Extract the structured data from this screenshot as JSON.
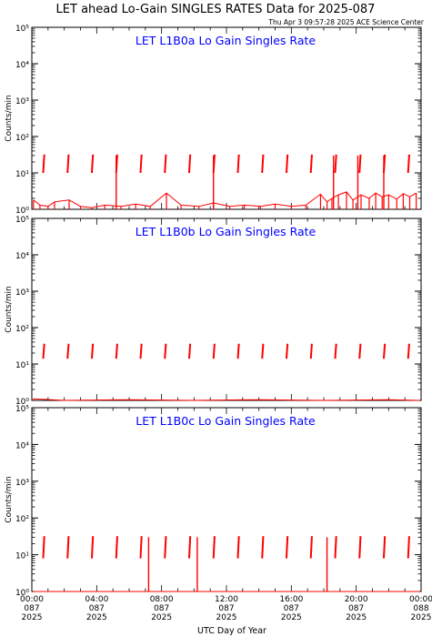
{
  "header": {
    "title": "LET ahead Lo-Gain SINGLES RATES Data for 2025-087",
    "timestamp": "Thu Apr  3 09:57:28 2025 ACE Science Center"
  },
  "colors": {
    "trace": "#ff0000",
    "panel_label": "#0000ff",
    "axes": "#000000",
    "background": "#ffffff"
  },
  "chart_data": [
    {
      "type": "line",
      "title": "LET L1B0a Lo Gain Singles Rate",
      "ylabel": "Counts/min",
      "yscale": "log",
      "ylim": [
        1,
        100000
      ],
      "y_ticks": [
        1,
        10,
        100,
        1000,
        10000,
        100000
      ],
      "y_tick_labels": [
        "10⁰",
        "10¹",
        "10²",
        "10³",
        "10⁴",
        "10⁵"
      ],
      "xlim": [
        0,
        24
      ],
      "x_unit": "hours UTC on day 087 of 2025",
      "grid": false,
      "series": [
        {
          "points": [
            [
              0.1,
              1.8
            ],
            [
              0.5,
              1.3
            ],
            [
              1.0,
              1.2
            ],
            [
              1.4,
              1.6
            ],
            [
              2.3,
              1.8
            ],
            [
              3.0,
              1.2
            ],
            [
              3.7,
              1.1
            ],
            [
              4.5,
              1.3
            ],
            [
              5.5,
              1.2
            ],
            [
              6.4,
              1.4
            ],
            [
              7.3,
              1.2
            ],
            [
              8.3,
              2.8
            ],
            [
              9.2,
              1.3
            ],
            [
              10.3,
              1.2
            ],
            [
              11.2,
              1.5
            ],
            [
              12.2,
              1.2
            ],
            [
              13.1,
              1.3
            ],
            [
              14.1,
              1.2
            ],
            [
              15.0,
              1.4
            ],
            [
              16.0,
              1.2
            ],
            [
              16.9,
              1.3
            ],
            [
              17.8,
              2.6
            ],
            [
              18.2,
              1.6
            ],
            [
              18.5,
              2.0
            ],
            [
              18.9,
              2.5
            ],
            [
              19.4,
              3.0
            ],
            [
              19.8,
              1.8
            ],
            [
              20.3,
              2.5
            ],
            [
              20.8,
              2.0
            ],
            [
              21.2,
              2.8
            ],
            [
              21.6,
              2.2
            ],
            [
              22.0,
              2.5
            ],
            [
              22.5,
              1.9
            ],
            [
              22.9,
              2.7
            ],
            [
              23.3,
              2.2
            ],
            [
              23.7,
              2.8
            ]
          ]
        }
      ],
      "bursts": [
        0.7,
        2.2,
        3.7,
        5.2,
        6.7,
        8.2,
        9.7,
        11.2,
        12.7,
        14.2,
        15.7,
        17.2,
        18.7,
        20.2,
        21.7,
        23.2
      ],
      "burst_range": [
        10,
        32
      ],
      "spikes": [
        [
          5.2,
          30
        ],
        [
          11.2,
          30
        ],
        [
          18.6,
          30
        ],
        [
          20.1,
          30
        ],
        [
          21.7,
          30
        ]
      ]
    },
    {
      "type": "line",
      "title": "LET L1B0b Lo Gain Singles Rate",
      "ylabel": "Counts/min",
      "yscale": "log",
      "ylim": [
        1,
        100000
      ],
      "y_ticks": [
        1,
        10,
        100,
        1000,
        10000,
        100000
      ],
      "y_tick_labels": [
        "10⁰",
        "10¹",
        "10²",
        "10³",
        "10⁴",
        "10⁵"
      ],
      "xlim": [
        0,
        24
      ],
      "x_unit": "hours UTC on day 087 of 2025",
      "grid": false,
      "series": [
        {
          "points": [
            [
              0.1,
              1.1
            ],
            [
              2.0,
              1.0
            ],
            [
              6.0,
              1.05
            ],
            [
              10.0,
              1.0
            ],
            [
              14.0,
              1.05
            ],
            [
              18.0,
              1.0
            ],
            [
              22.0,
              1.05
            ],
            [
              23.9,
              1.0
            ]
          ]
        }
      ],
      "bursts": [
        0.7,
        2.2,
        3.7,
        5.2,
        6.7,
        8.2,
        9.7,
        11.2,
        12.7,
        14.2,
        15.7,
        17.2,
        18.7,
        20.2,
        21.7,
        23.2
      ],
      "burst_range": [
        14,
        36
      ],
      "spikes": []
    },
    {
      "type": "line",
      "title": "LET L1B0c Lo Gain Singles Rate",
      "ylabel": "Counts/min",
      "yscale": "log",
      "ylim": [
        1,
        100000
      ],
      "y_ticks": [
        1,
        10,
        100,
        1000,
        10000,
        100000
      ],
      "y_tick_labels": [
        "10⁰",
        "10¹",
        "10²",
        "10³",
        "10⁴",
        "10⁵"
      ],
      "xlim": [
        0,
        24
      ],
      "x_unit": "hours UTC on day 087 of 2025",
      "grid": false,
      "series": [
        {
          "points": [
            [
              0.1,
              1.0
            ],
            [
              4.0,
              1.0
            ],
            [
              8.0,
              1.0
            ],
            [
              12.0,
              1.0
            ],
            [
              16.0,
              1.0
            ],
            [
              20.0,
              1.0
            ],
            [
              23.9,
              1.0
            ]
          ]
        }
      ],
      "bursts": [
        0.7,
        2.2,
        3.7,
        5.2,
        6.7,
        8.2,
        9.7,
        11.2,
        12.7,
        14.2,
        15.7,
        17.2,
        18.7,
        20.2,
        21.7,
        23.2
      ],
      "burst_range": [
        8,
        32
      ],
      "spikes": [
        [
          7.2,
          30
        ],
        [
          10.2,
          30
        ],
        [
          18.2,
          30
        ]
      ]
    }
  ],
  "x_axis": {
    "label": "UTC Day of Year",
    "ticks": [
      {
        "hour": 0,
        "time": "00:00",
        "day": "087",
        "year": "2025"
      },
      {
        "hour": 4,
        "time": "04:00",
        "day": "087",
        "year": "2025"
      },
      {
        "hour": 8,
        "time": "08:00",
        "day": "087",
        "year": "2025"
      },
      {
        "hour": 12,
        "time": "12:00",
        "day": "087",
        "year": "2025"
      },
      {
        "hour": 16,
        "time": "16:00",
        "day": "087",
        "year": "2025"
      },
      {
        "hour": 20,
        "time": "20:00",
        "day": "087",
        "year": "2025"
      },
      {
        "hour": 24,
        "time": "00:00",
        "day": "088",
        "year": "2025"
      }
    ]
  }
}
